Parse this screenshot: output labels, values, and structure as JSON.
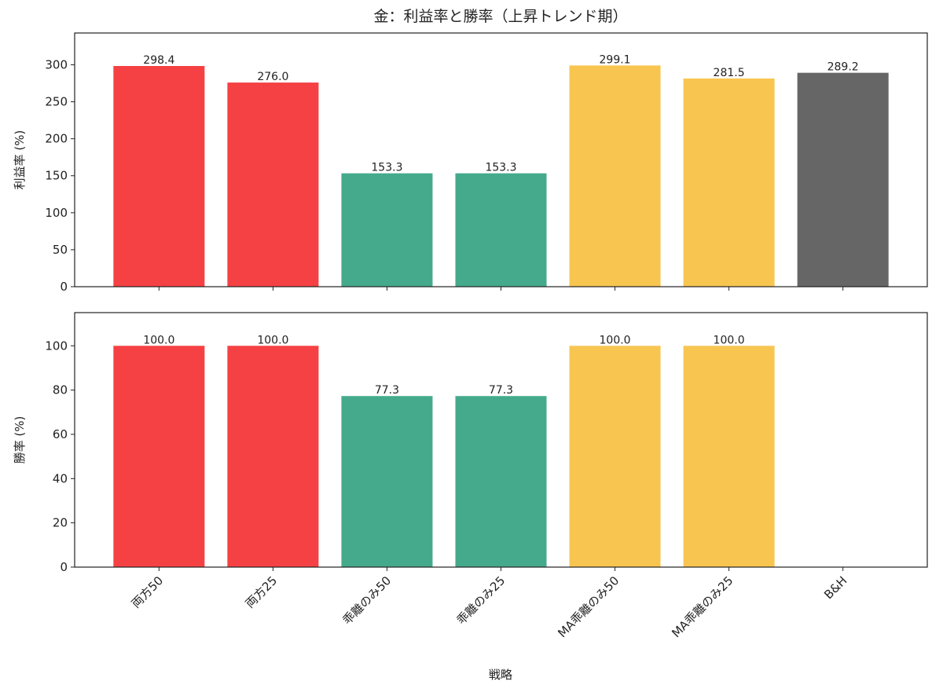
{
  "chart_data": {
    "type": "bar",
    "title": "金：利益率と勝率（上昇トレンド期）",
    "xlabel": "戦略",
    "categories": [
      "両方50",
      "両方25",
      "乖離のみ50",
      "乖離のみ25",
      "MA乖離のみ50",
      "MA乖離のみ25",
      "B&H"
    ],
    "colors": [
      "#f54143",
      "#f54143",
      "#45aa8b",
      "#45aa8b",
      "#f8c650",
      "#f8c650",
      "#666666"
    ],
    "panels": [
      {
        "name": "profit",
        "ylabel": "利益率 (%)",
        "ylim": [
          0,
          343
        ],
        "yticks": [
          0,
          50,
          100,
          150,
          200,
          250,
          300
        ],
        "values": [
          298.4,
          276.0,
          153.3,
          153.3,
          299.1,
          281.5,
          289.2
        ],
        "labels": [
          "298.4",
          "276.0",
          "153.3",
          "153.3",
          "299.1",
          "281.5",
          "289.2"
        ]
      },
      {
        "name": "winrate",
        "ylabel": "勝率 (%)",
        "ylim": [
          0,
          115
        ],
        "yticks": [
          0,
          20,
          40,
          60,
          80,
          100
        ],
        "values": [
          100.0,
          100.0,
          77.3,
          77.3,
          100.0,
          100.0,
          null
        ],
        "labels": [
          "100.0",
          "100.0",
          "77.3",
          "77.3",
          "100.0",
          "100.0",
          null
        ]
      }
    ]
  }
}
